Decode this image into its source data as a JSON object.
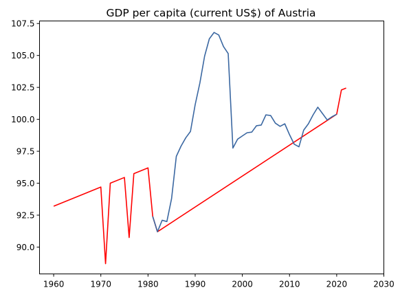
{
  "chart_data": {
    "type": "line",
    "title": "GDP per capita (current US$) of Austria",
    "xlabel": "",
    "ylabel": "",
    "xlim": [
      1957,
      2030
    ],
    "ylim": [
      87.9,
      107.7
    ],
    "grid": false,
    "xticks": [
      1960,
      1970,
      1980,
      1990,
      2000,
      2010,
      2020,
      2030
    ],
    "yticks": [
      90.0,
      92.5,
      95.0,
      97.5,
      100.0,
      102.5,
      105.0,
      107.5
    ],
    "colors": {
      "highlight": "#ff0000",
      "main": "#3a67a1"
    },
    "series": [
      {
        "color": "#ff0000",
        "x": [
          1960,
          1970,
          1971,
          1972,
          1975,
          1976,
          1977,
          1980,
          1981,
          1982,
          2020,
          2021,
          2022
        ],
        "y": [
          93.2,
          94.7,
          88.7,
          95.0,
          95.45,
          90.75,
          95.75,
          96.2,
          92.4,
          91.2,
          100.4,
          102.3,
          102.45
        ]
      },
      {
        "color": "#3a67a1",
        "x": [
          1981,
          1982,
          1983,
          1984,
          1985,
          1986,
          1987,
          1988,
          1989,
          1990,
          1991,
          1992,
          1993,
          1994,
          1995,
          1996,
          1997,
          1998,
          1999,
          2000,
          2001,
          2002,
          2003,
          2004,
          2005,
          2006,
          2007,
          2008,
          2009,
          2010,
          2011,
          2012,
          2013,
          2014,
          2015,
          2016,
          2017,
          2018,
          2019,
          2020
        ],
        "y": [
          92.4,
          91.2,
          92.1,
          92.0,
          93.8,
          97.1,
          97.9,
          98.55,
          99.05,
          101.15,
          102.85,
          104.95,
          106.3,
          106.8,
          106.6,
          105.7,
          105.15,
          97.75,
          98.45,
          98.7,
          98.95,
          99.0,
          99.5,
          99.55,
          100.35,
          100.3,
          99.7,
          99.45,
          99.65,
          98.8,
          98.05,
          97.85,
          99.15,
          99.65,
          100.35,
          100.95,
          100.45,
          99.95,
          100.2,
          100.4
        ]
      }
    ]
  }
}
